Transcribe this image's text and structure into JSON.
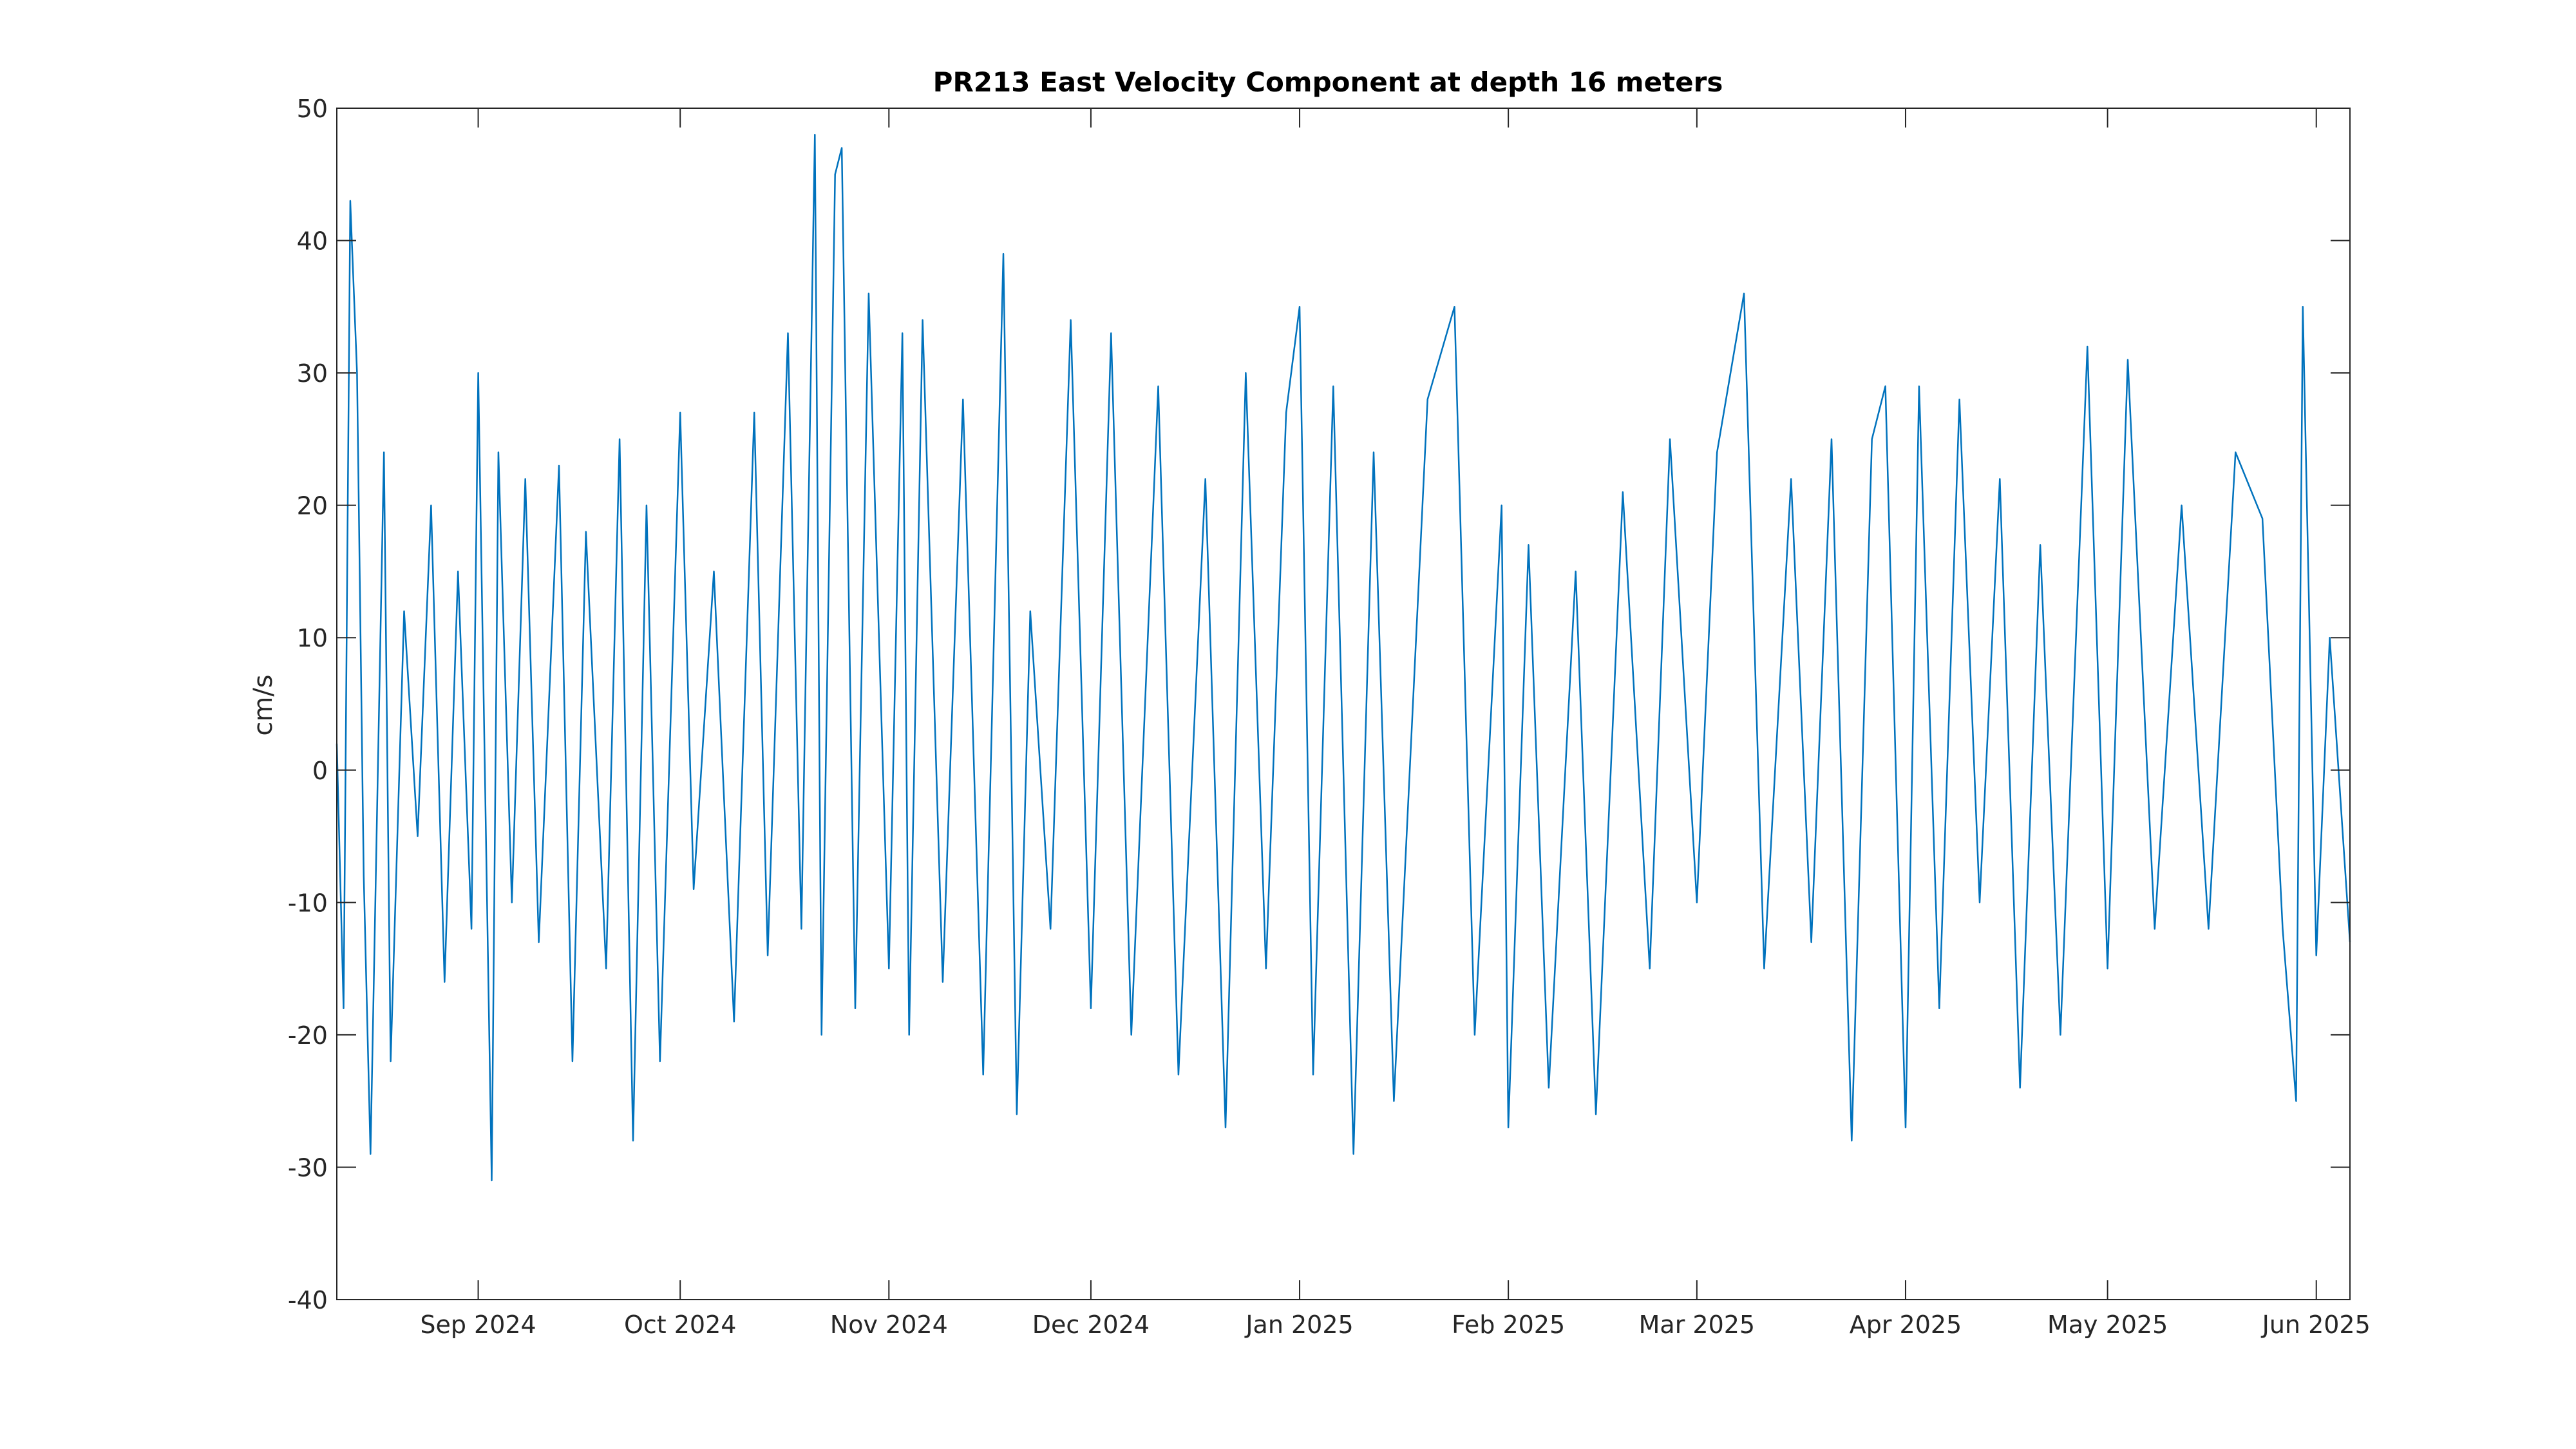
{
  "chart_data": {
    "type": "line",
    "title": "PR213 East Velocity Component at depth 16 meters",
    "xlabel": "",
    "ylabel": "cm/s",
    "xlim": [
      "2024-08-11",
      "2025-06-06"
    ],
    "ylim": [
      -40,
      50
    ],
    "yticks": [
      -40,
      -30,
      -20,
      -10,
      0,
      10,
      20,
      30,
      40,
      50
    ],
    "xticks": [
      {
        "date": "2024-09-01",
        "label": "Sep 2024"
      },
      {
        "date": "2024-10-01",
        "label": "Oct 2024"
      },
      {
        "date": "2024-11-01",
        "label": "Nov 2024"
      },
      {
        "date": "2024-12-01",
        "label": "Dec 2024"
      },
      {
        "date": "2025-01-01",
        "label": "Jan 2025"
      },
      {
        "date": "2025-02-01",
        "label": "Feb 2025"
      },
      {
        "date": "2025-03-01",
        "label": "Mar 2025"
      },
      {
        "date": "2025-04-01",
        "label": "Apr 2025"
      },
      {
        "date": "2025-05-01",
        "label": "May 2025"
      },
      {
        "date": "2025-06-01",
        "label": "Jun 2025"
      }
    ],
    "grid": false,
    "series": [
      {
        "color": "#0072BD",
        "points": [
          [
            "2024-08-11",
            2
          ],
          [
            "2024-08-12",
            -18
          ],
          [
            "2024-08-13",
            43
          ],
          [
            "2024-08-14",
            30
          ],
          [
            "2024-08-15",
            -8
          ],
          [
            "2024-08-16",
            -29
          ],
          [
            "2024-08-18",
            24
          ],
          [
            "2024-08-19",
            -22
          ],
          [
            "2024-08-21",
            12
          ],
          [
            "2024-08-23",
            -5
          ],
          [
            "2024-08-25",
            20
          ],
          [
            "2024-08-27",
            -16
          ],
          [
            "2024-08-29",
            15
          ],
          [
            "2024-08-31",
            -12
          ],
          [
            "2024-09-01",
            30
          ],
          [
            "2024-09-03",
            -31
          ],
          [
            "2024-09-04",
            24
          ],
          [
            "2024-09-06",
            -10
          ],
          [
            "2024-09-08",
            22
          ],
          [
            "2024-09-10",
            -13
          ],
          [
            "2024-09-13",
            23
          ],
          [
            "2024-09-15",
            -22
          ],
          [
            "2024-09-17",
            18
          ],
          [
            "2024-09-20",
            -15
          ],
          [
            "2024-09-22",
            25
          ],
          [
            "2024-09-24",
            -28
          ],
          [
            "2024-09-26",
            20
          ],
          [
            "2024-09-28",
            -22
          ],
          [
            "2024-10-01",
            27
          ],
          [
            "2024-10-03",
            -9
          ],
          [
            "2024-10-06",
            15
          ],
          [
            "2024-10-09",
            -19
          ],
          [
            "2024-10-12",
            27
          ],
          [
            "2024-10-14",
            -14
          ],
          [
            "2024-10-17",
            33
          ],
          [
            "2024-10-19",
            -12
          ],
          [
            "2024-10-21",
            48
          ],
          [
            "2024-10-22",
            -20
          ],
          [
            "2024-10-24",
            45
          ],
          [
            "2024-10-25",
            47
          ],
          [
            "2024-10-27",
            -18
          ],
          [
            "2024-10-29",
            36
          ],
          [
            "2024-11-01",
            -15
          ],
          [
            "2024-11-03",
            33
          ],
          [
            "2024-11-04",
            -20
          ],
          [
            "2024-11-06",
            34
          ],
          [
            "2024-11-09",
            -16
          ],
          [
            "2024-11-12",
            28
          ],
          [
            "2024-11-15",
            -23
          ],
          [
            "2024-11-18",
            39
          ],
          [
            "2024-11-20",
            -26
          ],
          [
            "2024-11-22",
            12
          ],
          [
            "2024-11-25",
            -12
          ],
          [
            "2024-11-28",
            34
          ],
          [
            "2024-12-01",
            -18
          ],
          [
            "2024-12-04",
            33
          ],
          [
            "2024-12-07",
            -20
          ],
          [
            "2024-12-11",
            29
          ],
          [
            "2024-12-14",
            -23
          ],
          [
            "2024-12-18",
            22
          ],
          [
            "2024-12-21",
            -27
          ],
          [
            "2024-12-24",
            30
          ],
          [
            "2024-12-27",
            -15
          ],
          [
            "2024-12-30",
            27
          ],
          [
            "2025-01-01",
            35
          ],
          [
            "2025-01-03",
            -23
          ],
          [
            "2025-01-06",
            29
          ],
          [
            "2025-01-09",
            -29
          ],
          [
            "2025-01-12",
            24
          ],
          [
            "2025-01-15",
            -25
          ],
          [
            "2025-01-20",
            28
          ],
          [
            "2025-01-24",
            35
          ],
          [
            "2025-01-27",
            -20
          ],
          [
            "2025-01-31",
            20
          ],
          [
            "2025-02-01",
            -27
          ],
          [
            "2025-02-04",
            17
          ],
          [
            "2025-02-07",
            -24
          ],
          [
            "2025-02-11",
            15
          ],
          [
            "2025-02-14",
            -26
          ],
          [
            "2025-02-18",
            21
          ],
          [
            "2025-02-22",
            -15
          ],
          [
            "2025-02-25",
            25
          ],
          [
            "2025-03-01",
            -10
          ],
          [
            "2025-03-04",
            24
          ],
          [
            "2025-03-08",
            36
          ],
          [
            "2025-03-11",
            -15
          ],
          [
            "2025-03-15",
            22
          ],
          [
            "2025-03-18",
            -13
          ],
          [
            "2025-03-21",
            25
          ],
          [
            "2025-03-24",
            -28
          ],
          [
            "2025-03-27",
            25
          ],
          [
            "2025-03-29",
            29
          ],
          [
            "2025-04-01",
            -27
          ],
          [
            "2025-04-03",
            29
          ],
          [
            "2025-04-06",
            -18
          ],
          [
            "2025-04-09",
            28
          ],
          [
            "2025-04-12",
            -10
          ],
          [
            "2025-04-15",
            22
          ],
          [
            "2025-04-18",
            -24
          ],
          [
            "2025-04-21",
            17
          ],
          [
            "2025-04-24",
            -20
          ],
          [
            "2025-04-28",
            32
          ],
          [
            "2025-05-01",
            -15
          ],
          [
            "2025-05-04",
            31
          ],
          [
            "2025-05-08",
            -12
          ],
          [
            "2025-05-12",
            20
          ],
          [
            "2025-05-16",
            -12
          ],
          [
            "2025-05-20",
            24
          ],
          [
            "2025-05-24",
            19
          ],
          [
            "2025-05-27",
            -12
          ],
          [
            "2025-05-29",
            -25
          ],
          [
            "2025-05-30",
            35
          ],
          [
            "2025-06-01",
            -14
          ],
          [
            "2025-06-03",
            10
          ],
          [
            "2025-06-06",
            -13
          ]
        ]
      }
    ]
  }
}
